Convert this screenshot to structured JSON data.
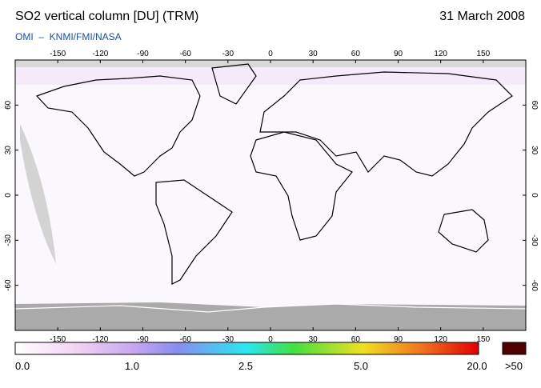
{
  "header": {
    "title": "SO2 vertical column [DU] (TRM)",
    "date": "31 March 2008",
    "subtitle": "OMI  –  KNMI/FMI/NASA"
  },
  "map": {
    "longitude_ticks": [
      -150,
      -120,
      -90,
      -60,
      -30,
      0,
      30,
      60,
      90,
      120,
      150
    ],
    "latitude_ticks": [
      60,
      30,
      0,
      -30,
      -60
    ]
  },
  "colorbar": {
    "labels": [
      "0.0",
      "1.0",
      "2.5",
      "5.0",
      "20.0"
    ],
    "overflow_label": ">50"
  }
}
